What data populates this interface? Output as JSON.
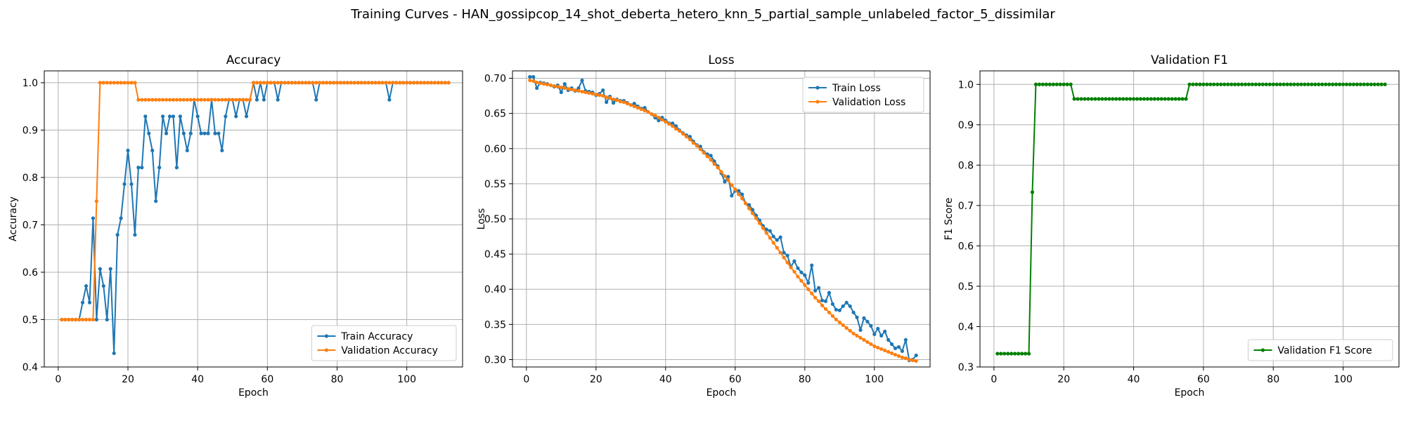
{
  "figure": {
    "title": "Training Curves - HAN_gossipcop_14_shot_deberta_hetero_knn_5_partial_sample_unlabeled_factor_5_dissimilar"
  },
  "colors": {
    "train": "#1f77b4",
    "validation": "#ff7f0e",
    "f1": "#008000",
    "grid": "#b0b0b0"
  },
  "chart_data": [
    {
      "type": "line",
      "title": "Accuracy",
      "xlabel": "Epoch",
      "ylabel": "Accuracy",
      "xlim": [
        -4,
        116
      ],
      "ylim": [
        0.4,
        1.025
      ],
      "xticks": [
        0,
        20,
        40,
        60,
        80,
        100
      ],
      "yticks": [
        0.4,
        0.5,
        0.6,
        0.7,
        0.8,
        0.9,
        1.0
      ],
      "ytick_labels": [
        "0.4",
        "0.5",
        "0.6",
        "0.7",
        "0.8",
        "0.9",
        "1.0"
      ],
      "grid": true,
      "legend_loc": "lower-right",
      "series": [
        {
          "name": "Train Accuracy",
          "color_key": "train",
          "values": [
            0.5,
            0.5,
            0.5,
            0.5,
            0.5,
            0.5,
            0.536,
            0.571,
            0.536,
            0.714,
            0.5,
            0.607,
            0.571,
            0.5,
            0.607,
            0.429,
            0.679,
            0.714,
            0.786,
            0.857,
            0.786,
            0.679,
            0.821,
            0.821,
            0.929,
            0.893,
            0.857,
            0.75,
            0.821,
            0.929,
            0.893,
            0.929,
            0.929,
            0.821,
            0.929,
            0.893,
            0.857,
            0.893,
            0.964,
            0.929,
            0.893,
            0.893,
            0.893,
            0.964,
            0.893,
            0.893,
            0.857,
            0.929,
            0.964,
            0.964,
            0.929,
            0.964,
            0.964,
            0.929,
            0.964,
            1.0,
            0.964,
            1.0,
            0.964,
            1.0,
            1.0,
            1.0,
            0.964,
            1.0,
            1.0,
            1.0,
            1.0,
            1.0,
            1.0,
            1.0,
            1.0,
            1.0,
            1.0,
            0.964,
            1.0,
            1.0,
            1.0,
            1.0,
            1.0,
            1.0,
            1.0,
            1.0,
            1.0,
            1.0,
            1.0,
            1.0,
            1.0,
            1.0,
            1.0,
            1.0,
            1.0,
            1.0,
            1.0,
            1.0,
            0.964,
            1.0,
            1.0,
            1.0,
            1.0,
            1.0,
            1.0,
            1.0,
            1.0,
            1.0,
            1.0,
            1.0,
            1.0,
            1.0,
            1.0,
            1.0,
            1.0,
            1.0
          ]
        },
        {
          "name": "Validation Accuracy",
          "color_key": "validation",
          "values": [
            0.5,
            0.5,
            0.5,
            0.5,
            0.5,
            0.5,
            0.5,
            0.5,
            0.5,
            0.5,
            0.75,
            1.0,
            1.0,
            1.0,
            1.0,
            1.0,
            1.0,
            1.0,
            1.0,
            1.0,
            1.0,
            1.0,
            0.964,
            0.964,
            0.964,
            0.964,
            0.964,
            0.964,
            0.964,
            0.964,
            0.964,
            0.964,
            0.964,
            0.964,
            0.964,
            0.964,
            0.964,
            0.964,
            0.964,
            0.964,
            0.964,
            0.964,
            0.964,
            0.964,
            0.964,
            0.964,
            0.964,
            0.964,
            0.964,
            0.964,
            0.964,
            0.964,
            0.964,
            0.964,
            0.964,
            1.0,
            1.0,
            1.0,
            1.0,
            1.0,
            1.0,
            1.0,
            1.0,
            1.0,
            1.0,
            1.0,
            1.0,
            1.0,
            1.0,
            1.0,
            1.0,
            1.0,
            1.0,
            1.0,
            1.0,
            1.0,
            1.0,
            1.0,
            1.0,
            1.0,
            1.0,
            1.0,
            1.0,
            1.0,
            1.0,
            1.0,
            1.0,
            1.0,
            1.0,
            1.0,
            1.0,
            1.0,
            1.0,
            1.0,
            1.0,
            1.0,
            1.0,
            1.0,
            1.0,
            1.0,
            1.0,
            1.0,
            1.0,
            1.0,
            1.0,
            1.0,
            1.0,
            1.0,
            1.0,
            1.0,
            1.0,
            1.0
          ]
        }
      ]
    },
    {
      "type": "line",
      "title": "Loss",
      "xlabel": "Epoch",
      "ylabel": "Loss",
      "xlim": [
        -4,
        116
      ],
      "ylim": [
        0.2895,
        0.7105
      ],
      "xticks": [
        0,
        20,
        40,
        60,
        80,
        100
      ],
      "yticks": [
        0.3,
        0.35,
        0.4,
        0.45,
        0.5,
        0.55,
        0.6,
        0.65,
        0.7
      ],
      "ytick_labels": [
        "0.30",
        "0.35",
        "0.40",
        "0.45",
        "0.50",
        "0.55",
        "0.60",
        "0.65",
        "0.70"
      ],
      "grid": true,
      "legend_loc": "upper-right",
      "series": [
        {
          "name": "Train Loss",
          "color_key": "train",
          "values": [
            0.702,
            0.702,
            0.686,
            0.694,
            0.693,
            0.692,
            0.69,
            0.688,
            0.69,
            0.68,
            0.692,
            0.683,
            0.686,
            0.682,
            0.686,
            0.697,
            0.682,
            0.681,
            0.68,
            0.676,
            0.678,
            0.683,
            0.666,
            0.674,
            0.665,
            0.67,
            0.668,
            0.668,
            0.665,
            0.662,
            0.664,
            0.66,
            0.657,
            0.658,
            0.652,
            0.649,
            0.644,
            0.64,
            0.644,
            0.64,
            0.636,
            0.636,
            0.632,
            0.626,
            0.622,
            0.619,
            0.617,
            0.61,
            0.605,
            0.603,
            0.595,
            0.592,
            0.59,
            0.582,
            0.575,
            0.565,
            0.553,
            0.56,
            0.533,
            0.54,
            0.54,
            0.535,
            0.522,
            0.52,
            0.513,
            0.505,
            0.498,
            0.49,
            0.485,
            0.483,
            0.475,
            0.47,
            0.474,
            0.452,
            0.448,
            0.432,
            0.44,
            0.43,
            0.424,
            0.42,
            0.409,
            0.434,
            0.398,
            0.402,
            0.384,
            0.383,
            0.395,
            0.379,
            0.371,
            0.37,
            0.376,
            0.381,
            0.376,
            0.367,
            0.36,
            0.342,
            0.359,
            0.354,
            0.348,
            0.336,
            0.344,
            0.334,
            0.34,
            0.328,
            0.322,
            0.316,
            0.318,
            0.312,
            0.328,
            0.299,
            0.3,
            0.306
          ]
        },
        {
          "name": "Validation Loss",
          "color_key": "validation",
          "values": [
            0.697,
            0.696,
            0.694,
            0.693,
            0.692,
            0.691,
            0.69,
            0.689,
            0.688,
            0.687,
            0.686,
            0.685,
            0.684,
            0.683,
            0.682,
            0.681,
            0.68,
            0.679,
            0.678,
            0.677,
            0.676,
            0.675,
            0.673,
            0.672,
            0.67,
            0.669,
            0.667,
            0.666,
            0.664,
            0.662,
            0.66,
            0.658,
            0.656,
            0.654,
            0.652,
            0.649,
            0.647,
            0.644,
            0.641,
            0.638,
            0.635,
            0.632,
            0.628,
            0.625,
            0.621,
            0.617,
            0.613,
            0.608,
            0.604,
            0.599,
            0.594,
            0.589,
            0.584,
            0.578,
            0.573,
            0.567,
            0.561,
            0.555,
            0.548,
            0.542,
            0.535,
            0.529,
            0.522,
            0.515,
            0.508,
            0.501,
            0.494,
            0.487,
            0.48,
            0.473,
            0.466,
            0.459,
            0.452,
            0.445,
            0.438,
            0.431,
            0.425,
            0.418,
            0.412,
            0.406,
            0.4,
            0.394,
            0.388,
            0.383,
            0.377,
            0.372,
            0.367,
            0.362,
            0.357,
            0.353,
            0.349,
            0.345,
            0.341,
            0.337,
            0.334,
            0.331,
            0.328,
            0.325,
            0.322,
            0.319,
            0.317,
            0.315,
            0.313,
            0.311,
            0.309,
            0.307,
            0.305,
            0.303,
            0.302,
            0.3,
            0.299,
            0.298
          ]
        }
      ]
    },
    {
      "type": "line",
      "title": "Validation F1",
      "xlabel": "Epoch",
      "ylabel": "F1 Score",
      "xlim": [
        -4,
        116
      ],
      "ylim": [
        0.3,
        1.0335
      ],
      "xticks": [
        0,
        20,
        40,
        60,
        80,
        100
      ],
      "yticks": [
        0.3,
        0.4,
        0.5,
        0.6,
        0.7,
        0.8,
        0.9,
        1.0
      ],
      "ytick_labels": [
        "0.3",
        "0.4",
        "0.5",
        "0.6",
        "0.7",
        "0.8",
        "0.9",
        "1.0"
      ],
      "grid": true,
      "legend_loc": "lower-right",
      "series": [
        {
          "name": "Validation F1 Score",
          "color_key": "f1",
          "values": [
            0.333,
            0.333,
            0.333,
            0.333,
            0.333,
            0.333,
            0.333,
            0.333,
            0.333,
            0.333,
            0.733,
            1.0,
            1.0,
            1.0,
            1.0,
            1.0,
            1.0,
            1.0,
            1.0,
            1.0,
            1.0,
            1.0,
            0.964,
            0.964,
            0.964,
            0.964,
            0.964,
            0.964,
            0.964,
            0.964,
            0.964,
            0.964,
            0.964,
            0.964,
            0.964,
            0.964,
            0.964,
            0.964,
            0.964,
            0.964,
            0.964,
            0.964,
            0.964,
            0.964,
            0.964,
            0.964,
            0.964,
            0.964,
            0.964,
            0.964,
            0.964,
            0.964,
            0.964,
            0.964,
            0.964,
            1.0,
            1.0,
            1.0,
            1.0,
            1.0,
            1.0,
            1.0,
            1.0,
            1.0,
            1.0,
            1.0,
            1.0,
            1.0,
            1.0,
            1.0,
            1.0,
            1.0,
            1.0,
            1.0,
            1.0,
            1.0,
            1.0,
            1.0,
            1.0,
            1.0,
            1.0,
            1.0,
            1.0,
            1.0,
            1.0,
            1.0,
            1.0,
            1.0,
            1.0,
            1.0,
            1.0,
            1.0,
            1.0,
            1.0,
            1.0,
            1.0,
            1.0,
            1.0,
            1.0,
            1.0,
            1.0,
            1.0,
            1.0,
            1.0,
            1.0,
            1.0,
            1.0,
            1.0,
            1.0,
            1.0,
            1.0,
            1.0
          ]
        }
      ]
    }
  ]
}
